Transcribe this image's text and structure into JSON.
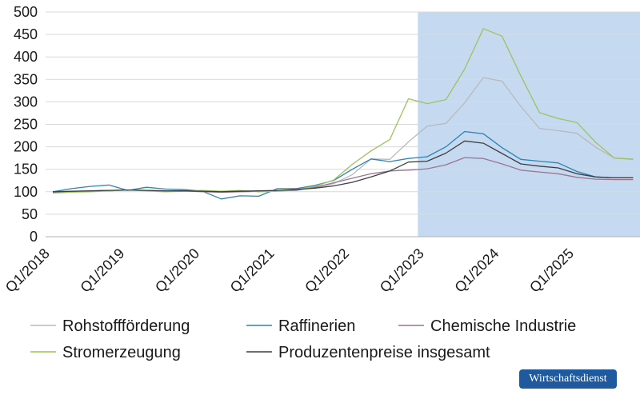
{
  "chart_data": {
    "type": "line",
    "title": "",
    "xlabel": "",
    "ylabel": "",
    "ylim": [
      0,
      500
    ],
    "yticks": [
      0,
      50,
      100,
      150,
      200,
      250,
      300,
      350,
      400,
      450,
      500
    ],
    "grid": true,
    "x_tick_labels": [
      "Q1/2018",
      "Q1/2019",
      "Q1/2020",
      "Q1/2021",
      "Q1/2022",
      "Q1/2023",
      "Q1/2024",
      "Q1/2025"
    ],
    "x_tick_indices": [
      0,
      4,
      8,
      12,
      16,
      20,
      24,
      28
    ],
    "num_points": 32,
    "forecast_shaded_from_index": 19.5,
    "series": [
      {
        "name": "Rohstoffförderung",
        "color": "#b7b9bc",
        "values": [
          99,
          100,
          102,
          103,
          104,
          103,
          102,
          103,
          101,
          99,
          100,
          101,
          102,
          104,
          109,
          118,
          138,
          173,
          172,
          211,
          246,
          252,
          298,
          354,
          346,
          290,
          241,
          236,
          230,
          199,
          175,
          173
        ]
      },
      {
        "name": "Raffinerien",
        "color": "#2d84b5",
        "values": [
          100,
          107,
          112,
          115,
          103,
          110,
          106,
          105,
          101,
          84,
          91,
          90,
          107,
          107,
          114,
          125,
          150,
          173,
          167,
          174,
          178,
          200,
          234,
          229,
          198,
          172,
          168,
          164,
          145,
          133,
          131,
          131
        ]
      },
      {
        "name": "Chemische Industrie",
        "color": "#9a7590",
        "values": [
          98,
          100,
          101,
          102,
          104,
          103,
          101,
          102,
          100,
          99,
          100,
          101,
          102,
          103,
          110,
          120,
          130,
          140,
          146,
          148,
          151,
          160,
          176,
          174,
          162,
          148,
          144,
          140,
          132,
          128,
          127,
          127
        ]
      },
      {
        "name": "Stromerzeugung",
        "color": "#9ec25f",
        "values": [
          97,
          99,
          100,
          102,
          104,
          102,
          100,
          101,
          103,
          101,
          103,
          100,
          101,
          105,
          112,
          126,
          161,
          191,
          216,
          307,
          296,
          305,
          373,
          463,
          446,
          358,
          276,
          263,
          254,
          210,
          175,
          172
        ]
      },
      {
        "name": "Produzentenpreise insgesamt",
        "color": "#3b3f44",
        "values": [
          100,
          101,
          102,
          103,
          104,
          103,
          102,
          102,
          101,
          100,
          101,
          102,
          103,
          105,
          108,
          113,
          121,
          133,
          146,
          166,
          168,
          186,
          213,
          208,
          185,
          162,
          157,
          153,
          140,
          133,
          131,
          131
        ]
      }
    ],
    "legend": {
      "placement": "bottom",
      "rows": [
        [
          "Rohstoffförderung",
          "Raffinerien",
          "Chemische Industrie"
        ],
        [
          "Stromerzeugung",
          "Produzentenpreise insgesamt"
        ]
      ]
    }
  },
  "branding": {
    "label": "Wirtschaftsdienst"
  }
}
